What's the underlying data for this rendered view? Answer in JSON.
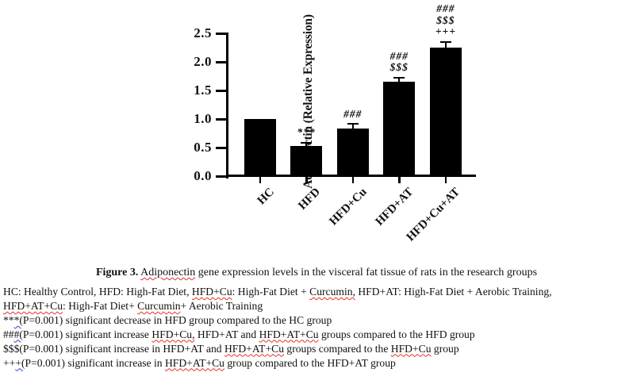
{
  "chart_data": {
    "type": "bar",
    "title": "",
    "xlabel": "",
    "ylabel": "Adiponectin (Relative Expression)",
    "categories": [
      "HC",
      "HFD",
      "HFD+Cu",
      "HFD+AT",
      "HFD+Cu+AT"
    ],
    "values": [
      1.0,
      0.53,
      0.84,
      1.65,
      2.25
    ],
    "errors_se": [
      0,
      0.04,
      0.06,
      0.06,
      0.09
    ],
    "annotations": [
      [],
      [
        "***"
      ],
      [
        "###"
      ],
      [
        "###",
        "$$$"
      ],
      [
        "###",
        "$$$",
        "+++"
      ]
    ],
    "ylim": [
      0,
      2.5
    ],
    "yticks": [
      "0.0",
      "0.5",
      "1.0",
      "1.5",
      "2.0",
      "2.5"
    ],
    "grid": false,
    "legend_position": "none",
    "bar_color": "#000000"
  },
  "caption": {
    "segments": [
      {
        "text": "Figure 3.",
        "bold": true
      },
      {
        "text": " "
      },
      {
        "text": "Adiponectin",
        "squiggle": "red"
      },
      {
        "text": " gene expression levels in the visceral fat tissue of rats in the research groups"
      }
    ]
  },
  "footnotes": {
    "lines": [
      [
        {
          "text": "HC: Healthy Control, HFD: High-Fat Diet, "
        },
        {
          "text": "HFD+Cu",
          "squiggle": "red"
        },
        {
          "text": ": High-Fat Diet + "
        },
        {
          "text": "Curcumin,",
          "squiggle": "red"
        },
        {
          "text": " HFD+AT: High-Fat Diet + Aerobic Training,"
        }
      ],
      [
        {
          "text": "HFD+AT+Cu",
          "squiggle": "red"
        },
        {
          "text": ": High-Fat Diet+ "
        },
        {
          "text": "Curcumin",
          "squiggle": "red"
        },
        {
          "text": "+ Aerobic Training"
        }
      ],
      [
        {
          "text": "**"
        },
        {
          "text": "*(",
          "squiggle": "blue"
        },
        {
          "text": "P=0.001) significant decrease in HFD group compared to the HC group"
        }
      ],
      [
        {
          "text": "##"
        },
        {
          "text": "#(",
          "squiggle": "blue"
        },
        {
          "text": "P=0.001) significant increase "
        },
        {
          "text": "HFD+Cu,",
          "squiggle": "red"
        },
        {
          "text": " HFD+AT and "
        },
        {
          "text": "HFD+AT+Cu",
          "squiggle": "red"
        },
        {
          "text": " groups compared to the HFD group"
        }
      ],
      [
        {
          "text": "$$$(P=0.001) significant increase in HFD+AT and "
        },
        {
          "text": "HFD+AT+Cu",
          "squiggle": "red"
        },
        {
          "text": " groups compared to the "
        },
        {
          "text": "HFD+Cu",
          "squiggle": "red"
        },
        {
          "text": " group"
        }
      ],
      [
        {
          "text": "++"
        },
        {
          "text": "+(",
          "squiggle": "blue"
        },
        {
          "text": "P=0.001) significant increase in "
        },
        {
          "text": "HFD+AT+Cu",
          "squiggle": "red"
        },
        {
          "text": " group compared to the HFD+AT group"
        }
      ]
    ]
  }
}
